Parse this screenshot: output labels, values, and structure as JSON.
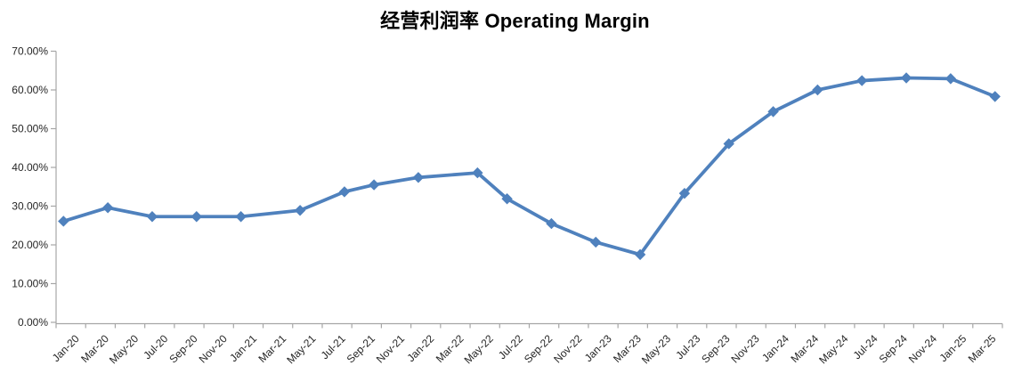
{
  "chart_data": {
    "type": "line",
    "title": "经营利润率 Operating Margin",
    "xlabel": "",
    "ylabel": "",
    "ylim": [
      0,
      70
    ],
    "y_ticks": [
      "0.00%",
      "10.00%",
      "20.00%",
      "30.00%",
      "40.00%",
      "50.00%",
      "60.00%",
      "70.00%"
    ],
    "x_axis": {
      "start_month": "Jan-20",
      "end_month": "Apr-25",
      "months_total": 64,
      "tick_label_interval_months": 2,
      "tick_labels": [
        "Jan-20",
        "Mar-20",
        "May-20",
        "Jul-20",
        "Sep-20",
        "Nov-20",
        "Jan-21",
        "Mar-21",
        "May-21",
        "Jul-21",
        "Sep-21",
        "Nov-21",
        "Jan-22",
        "Mar-22",
        "May-22",
        "Jul-22",
        "Sep-22",
        "Nov-22",
        "Jan-23",
        "Mar-23",
        "May-23",
        "Jul-23",
        "Sep-23",
        "Nov-23",
        "Jan-24",
        "Mar-24",
        "May-24",
        "Jul-24",
        "Sep-24",
        "Nov-24",
        "Jan-25",
        "Mar-25"
      ]
    },
    "grid": false,
    "legend": false,
    "marker": "diamond",
    "line_color": "#4F81BD",
    "axis_color": "#a6a6a6",
    "text_color": "#262626",
    "background": "#ffffff",
    "series": [
      {
        "name": "经营利润率 Operating Margin",
        "points": [
          {
            "label": "Jan-20",
            "month_index": 0,
            "value": 26.1
          },
          {
            "label": "Apr-20",
            "month_index": 3,
            "value": 29.6
          },
          {
            "label": "Jul-20",
            "month_index": 6,
            "value": 27.3
          },
          {
            "label": "Oct-20",
            "month_index": 9,
            "value": 27.3
          },
          {
            "label": "Jan-21",
            "month_index": 12,
            "value": 27.3
          },
          {
            "label": "May-21",
            "month_index": 16,
            "value": 28.9
          },
          {
            "label": "Aug-21",
            "month_index": 19,
            "value": 33.7
          },
          {
            "label": "Oct-21",
            "month_index": 21,
            "value": 35.5
          },
          {
            "label": "Jan-22",
            "month_index": 24,
            "value": 37.4
          },
          {
            "label": "May-22",
            "month_index": 28,
            "value": 38.6
          },
          {
            "label": "Jul-22",
            "month_index": 30,
            "value": 31.9
          },
          {
            "label": "Oct-22",
            "month_index": 33,
            "value": 25.5
          },
          {
            "label": "Jan-23",
            "month_index": 36,
            "value": 20.7
          },
          {
            "label": "Apr-23",
            "month_index": 39,
            "value": 17.5
          },
          {
            "label": "Jul-23",
            "month_index": 42,
            "value": 33.3
          },
          {
            "label": "Oct-23",
            "month_index": 45,
            "value": 46.1
          },
          {
            "label": "Jan-24",
            "month_index": 48,
            "value": 54.4
          },
          {
            "label": "Apr-24",
            "month_index": 51,
            "value": 60.0
          },
          {
            "label": "Jul-24",
            "month_index": 54,
            "value": 62.4
          },
          {
            "label": "Oct-24",
            "month_index": 57,
            "value": 63.1
          },
          {
            "label": "Jan-25",
            "month_index": 60,
            "value": 62.9
          },
          {
            "label": "Apr-25",
            "month_index": 63,
            "value": 58.3
          }
        ]
      }
    ]
  }
}
